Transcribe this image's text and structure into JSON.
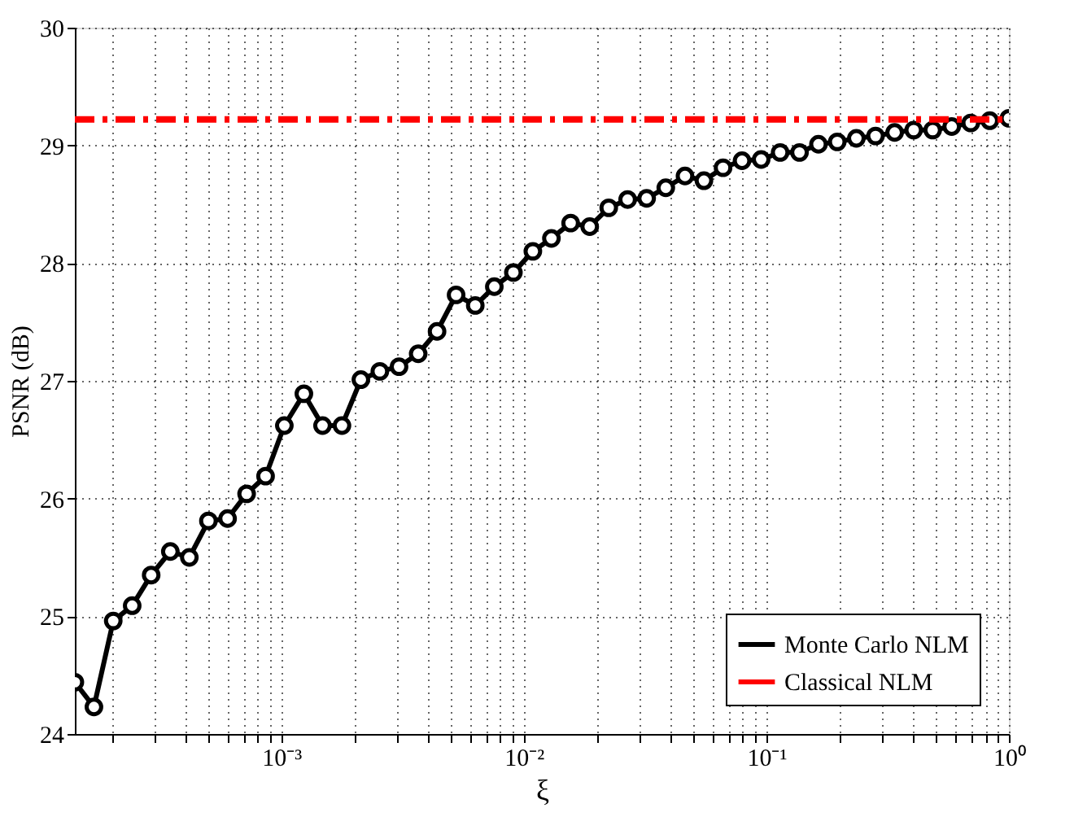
{
  "chart_data": {
    "type": "line",
    "xlabel": "ξ",
    "ylabel": "PSNR (dB)",
    "log": "x",
    "grid": true,
    "legend": "bottom right",
    "xlim": [
      0.000141,
      1
    ],
    "ylim": [
      24,
      30
    ],
    "yticks": [
      24,
      25,
      26,
      27,
      28,
      29,
      30
    ],
    "xticks": [
      {
        "value": 0.0002,
        "label": null
      },
      {
        "value": 0.0003,
        "label": null
      },
      {
        "value": 0.0004,
        "label": null
      },
      {
        "value": 0.0005,
        "label": null
      },
      {
        "value": 0.0006,
        "label": null
      },
      {
        "value": 0.0007,
        "label": null
      },
      {
        "value": 0.0008,
        "label": null
      },
      {
        "value": 0.0009,
        "label": null
      },
      {
        "value": 0.001,
        "label": "10⁻³"
      },
      {
        "value": 0.002,
        "label": null
      },
      {
        "value": 0.003,
        "label": null
      },
      {
        "value": 0.004,
        "label": null
      },
      {
        "value": 0.005,
        "label": null
      },
      {
        "value": 0.006,
        "label": null
      },
      {
        "value": 0.007,
        "label": null
      },
      {
        "value": 0.008,
        "label": null
      },
      {
        "value": 0.009,
        "label": null
      },
      {
        "value": 0.01,
        "label": "10⁻²"
      },
      {
        "value": 0.02,
        "label": null
      },
      {
        "value": 0.03,
        "label": null
      },
      {
        "value": 0.04,
        "label": null
      },
      {
        "value": 0.05,
        "label": null
      },
      {
        "value": 0.06,
        "label": null
      },
      {
        "value": 0.07,
        "label": null
      },
      {
        "value": 0.08,
        "label": null
      },
      {
        "value": 0.09,
        "label": null
      },
      {
        "value": 0.1,
        "label": "10⁻¹"
      },
      {
        "value": 0.2,
        "label": null
      },
      {
        "value": 0.3,
        "label": null
      },
      {
        "value": 0.4,
        "label": null
      },
      {
        "value": 0.5,
        "label": null
      },
      {
        "value": 0.6,
        "label": null
      },
      {
        "value": 0.7,
        "label": null
      },
      {
        "value": 0.8,
        "label": null
      },
      {
        "value": 0.9,
        "label": null
      },
      {
        "value": 1,
        "label": "10⁰"
      }
    ],
    "series": [
      {
        "name": "Monte Carlo NLM",
        "color": "#000000",
        "marker": "circle",
        "line_style": "solid",
        "x": [
          0.000141,
          0.000169,
          0.000203,
          0.000243,
          0.000291,
          0.000349,
          0.000418,
          0.000501,
          0.000601,
          0.00072,
          0.000862,
          0.00103,
          0.00124,
          0.00148,
          0.00178,
          0.00213,
          0.00255,
          0.00306,
          0.00367,
          0.00439,
          0.00526,
          0.00631,
          0.00756,
          0.00906,
          0.0109,
          0.013,
          0.0156,
          0.0187,
          0.0224,
          0.0268,
          0.0321,
          0.0385,
          0.0462,
          0.0553,
          0.0663,
          0.0794,
          0.0952,
          0.114,
          0.137,
          0.164,
          0.196,
          0.235,
          0.282,
          0.338,
          0.405,
          0.485,
          0.581,
          0.696,
          0.834,
          1
        ],
        "values": [
          24.44,
          24.23,
          24.96,
          25.09,
          25.35,
          25.55,
          25.5,
          25.81,
          25.83,
          26.04,
          26.19,
          26.62,
          26.89,
          26.62,
          26.62,
          27.01,
          27.08,
          27.12,
          27.23,
          27.42,
          27.73,
          27.64,
          27.8,
          27.92,
          28.1,
          28.21,
          28.34,
          28.31,
          28.47,
          28.54,
          28.55,
          28.64,
          28.74,
          28.7,
          28.81,
          28.87,
          28.88,
          28.94,
          28.94,
          29.01,
          29.03,
          29.06,
          29.08,
          29.11,
          29.13,
          29.13,
          29.16,
          29.19,
          29.21,
          29.23
        ]
      },
      {
        "name": "Classical NLM",
        "color": "#ff0000",
        "marker": "none",
        "line_style": "dashed",
        "x": [
          0.000141,
          1
        ],
        "values": [
          29.22,
          29.22
        ]
      }
    ]
  }
}
